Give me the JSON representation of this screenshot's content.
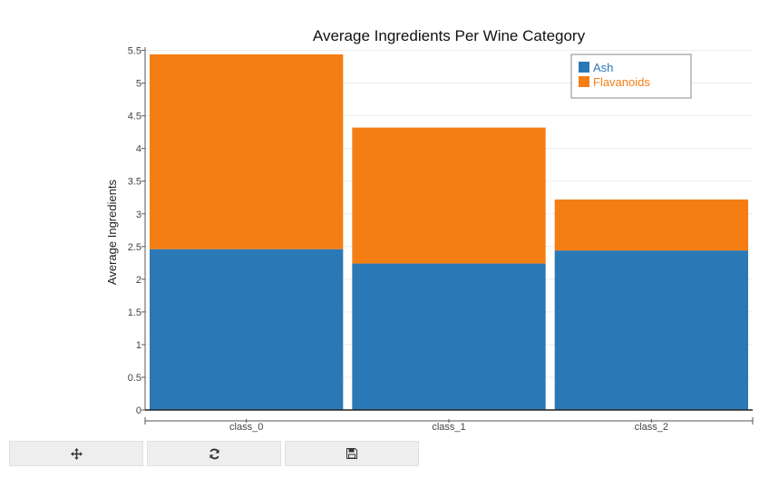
{
  "chart_data": {
    "type": "bar",
    "stacked": true,
    "title": "Average Ingredients Per Wine Category",
    "xlabel": "",
    "ylabel": "Average Ingredients",
    "categories": [
      "class_0",
      "class_1",
      "class_2"
    ],
    "series": [
      {
        "name": "Ash",
        "color": "#2b78b7",
        "values": [
          2.46,
          2.24,
          2.44
        ]
      },
      {
        "name": "Flavanoids",
        "color": "#f57e14",
        "values": [
          2.98,
          2.08,
          0.78
        ]
      }
    ],
    "ylim": [
      0,
      5.5
    ],
    "yticks": [
      "0",
      "0.5",
      "1",
      "1.5",
      "2",
      "2.5",
      "3",
      "3.5",
      "4",
      "4.5",
      "5",
      "5.5"
    ],
    "grid": true,
    "legend_position": "top-right"
  },
  "toolbar": {
    "buttons": [
      {
        "icon": "move-icon"
      },
      {
        "icon": "refresh-icon"
      },
      {
        "icon": "save-icon"
      }
    ]
  }
}
